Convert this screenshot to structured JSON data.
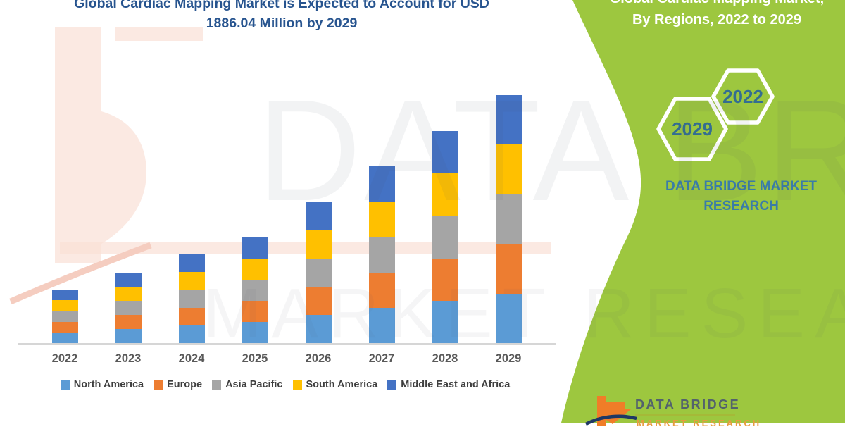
{
  "title": {
    "line1": "Global Cardiac Mapping Market is Expected to Account for USD",
    "line2": "1886.04 Million by 2029"
  },
  "side_panel": {
    "heading_line1": "Global Cardiac Mapping Market,",
    "heading_line2": "By Regions, 2022 to 2029",
    "hexagon_large_year": "2029",
    "hexagon_small_year": "2022",
    "brand_line1": "DATA BRIDGE MARKET",
    "brand_line2": "RESEARCH",
    "panel_color": "#9DC73F",
    "year_text_color": "#346E91"
  },
  "footer_logo": {
    "name": "DATA BRIDGE",
    "sub": "MARKET RESEARCH"
  },
  "watermarks": {
    "text_top": "DATA BRIDGE",
    "text_bottom": "MARKET RESEARCH"
  },
  "chart_data": {
    "type": "bar",
    "stacked": true,
    "title": "Global Cardiac Mapping Market is Expected to Account for USD 1886.04 Million by 2029",
    "units": "USD Million (estimated; 2029 total = 1886.04, regional split appears equal)",
    "categories": [
      "2022",
      "2023",
      "2024",
      "2025",
      "2026",
      "2027",
      "2028",
      "2029"
    ],
    "series": [
      {
        "name": "North America",
        "color": "#5B9BD5",
        "values": [
          81.4,
          107.2,
          135.0,
          160.8,
          214.4,
          269.0,
          322.6,
          377.2
        ]
      },
      {
        "name": "Europe",
        "color": "#ED7D31",
        "values": [
          81.4,
          107.2,
          135.0,
          160.8,
          214.4,
          269.0,
          322.6,
          377.2
        ]
      },
      {
        "name": "Asia Pacific",
        "color": "#A5A5A5",
        "values": [
          81.4,
          107.2,
          135.0,
          160.8,
          214.4,
          269.0,
          322.6,
          377.2
        ]
      },
      {
        "name": "South America",
        "color": "#FFC000",
        "values": [
          81.4,
          107.2,
          135.0,
          160.8,
          214.4,
          269.0,
          322.6,
          377.2
        ]
      },
      {
        "name": "Middle East and Africa",
        "color": "#4472C4",
        "values": [
          81.4,
          107.2,
          135.0,
          160.8,
          214.4,
          269.0,
          322.6,
          377.2
        ]
      }
    ],
    "totals": [
      407,
      536,
      675,
      804,
      1072,
      1345,
      1613,
      1886.04
    ],
    "y_axis_visible": false,
    "gridlines": false,
    "legend_position": "bottom",
    "axis_label_color": "#595959",
    "title_color": "#27548F"
  }
}
